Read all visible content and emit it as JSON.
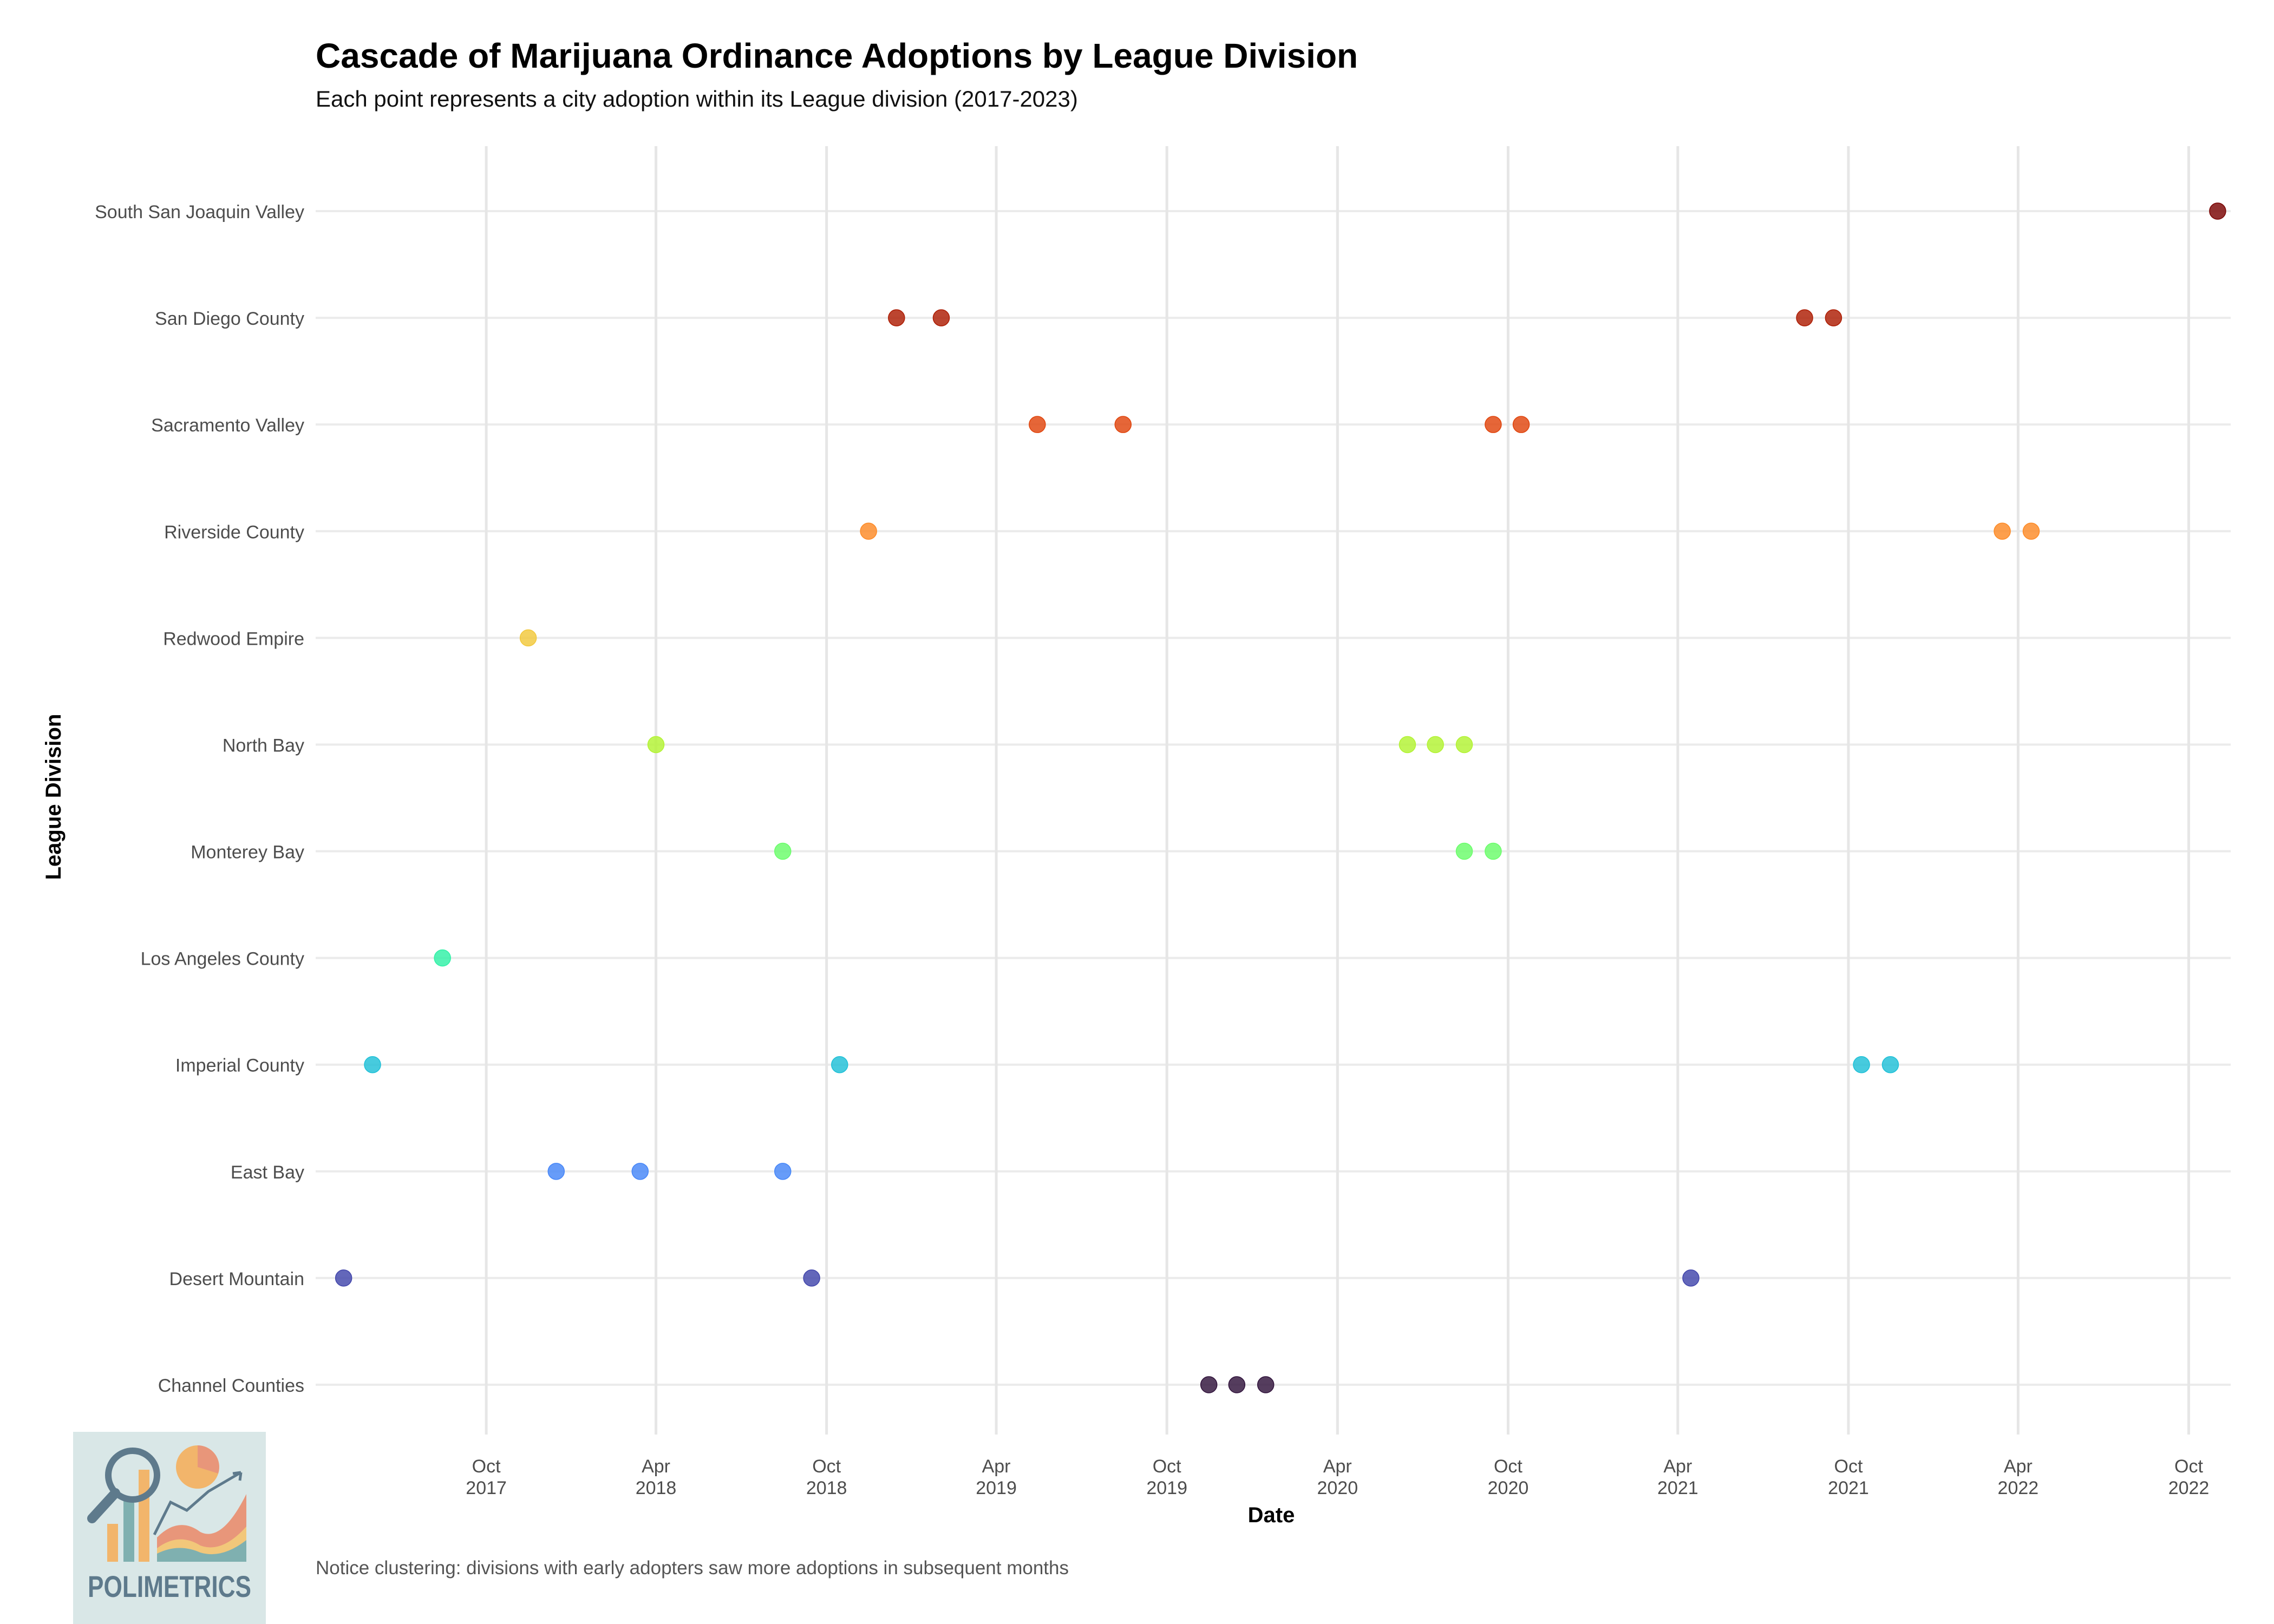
{
  "chart_data": {
    "type": "scatter",
    "title": "Cascade of Marijuana Ordinance Adoptions by League Division",
    "subtitle": "Each point represents a city adoption within its League division (2017-2023)",
    "xlabel": "Date",
    "ylabel": "League Division",
    "caption": "Notice clustering: divisions with early adopters saw more adoptions in subsequent months",
    "xlim": [
      "2017-04-01",
      "2022-11-15"
    ],
    "x_ticks": [
      {
        "date": "2017-10-01",
        "month": "Oct",
        "year": "2017"
      },
      {
        "date": "2018-04-01",
        "month": "Apr",
        "year": "2018"
      },
      {
        "date": "2018-10-01",
        "month": "Oct",
        "year": "2018"
      },
      {
        "date": "2019-04-01",
        "month": "Apr",
        "year": "2019"
      },
      {
        "date": "2019-10-01",
        "month": "Oct",
        "year": "2019"
      },
      {
        "date": "2020-04-01",
        "month": "Apr",
        "year": "2020"
      },
      {
        "date": "2020-10-01",
        "month": "Oct",
        "year": "2020"
      },
      {
        "date": "2021-04-01",
        "month": "Apr",
        "year": "2021"
      },
      {
        "date": "2021-10-01",
        "month": "Oct",
        "year": "2021"
      },
      {
        "date": "2022-04-01",
        "month": "Apr",
        "year": "2022"
      },
      {
        "date": "2022-10-01",
        "month": "Oct",
        "year": "2022"
      }
    ],
    "grid": true,
    "legend": "none",
    "categories": [
      "Channel Counties",
      "Desert Mountain",
      "East Bay",
      "Imperial County",
      "Los Angeles County",
      "Monterey Bay",
      "North Bay",
      "Redwood Empire",
      "Riverside County",
      "Sacramento Valley",
      "San Diego County",
      "South San Joaquin Valley"
    ],
    "series": [
      {
        "category": "Channel Counties",
        "color": "#30123b",
        "x": [
          "2019-11-15",
          "2019-12-15",
          "2020-01-15"
        ]
      },
      {
        "category": "Desert Mountain",
        "color": "#4145ab",
        "x": [
          "2017-05-01",
          "2018-09-15",
          "2021-04-15"
        ]
      },
      {
        "category": "East Bay",
        "color": "#4686f8",
        "x": [
          "2017-12-15",
          "2018-03-15",
          "2018-08-15"
        ]
      },
      {
        "category": "Imperial County",
        "color": "#1ec0d7",
        "x": [
          "2017-06-01",
          "2018-10-15",
          "2021-10-15",
          "2021-11-15"
        ]
      },
      {
        "category": "Los Angeles County",
        "color": "#2ff0a6",
        "x": [
          "2017-08-15"
        ]
      },
      {
        "category": "Monterey Bay",
        "color": "#6afd6a",
        "x": [
          "2018-08-15",
          "2020-08-15",
          "2020-09-15"
        ]
      },
      {
        "category": "North Bay",
        "color": "#b2f332",
        "x": [
          "2018-04-01",
          "2020-06-15",
          "2020-07-15",
          "2020-08-15"
        ]
      },
      {
        "category": "Redwood Empire",
        "color": "#f2c83a",
        "x": [
          "2017-11-15"
        ]
      },
      {
        "category": "Riverside County",
        "color": "#fd8a26",
        "x": [
          "2018-11-15",
          "2022-03-15",
          "2022-04-15"
        ]
      },
      {
        "category": "Sacramento Valley",
        "color": "#e0440c",
        "x": [
          "2019-05-15",
          "2019-08-15",
          "2020-09-15",
          "2020-10-15"
        ]
      },
      {
        "category": "San Diego County",
        "color": "#ad1c03",
        "x": [
          "2018-12-15",
          "2019-02-01",
          "2021-08-15",
          "2021-09-15"
        ]
      },
      {
        "category": "South San Joaquin Valley",
        "color": "#7a0403",
        "x": [
          "2022-11-01"
        ]
      }
    ]
  },
  "logo": {
    "text": "POLIMETRICS"
  }
}
